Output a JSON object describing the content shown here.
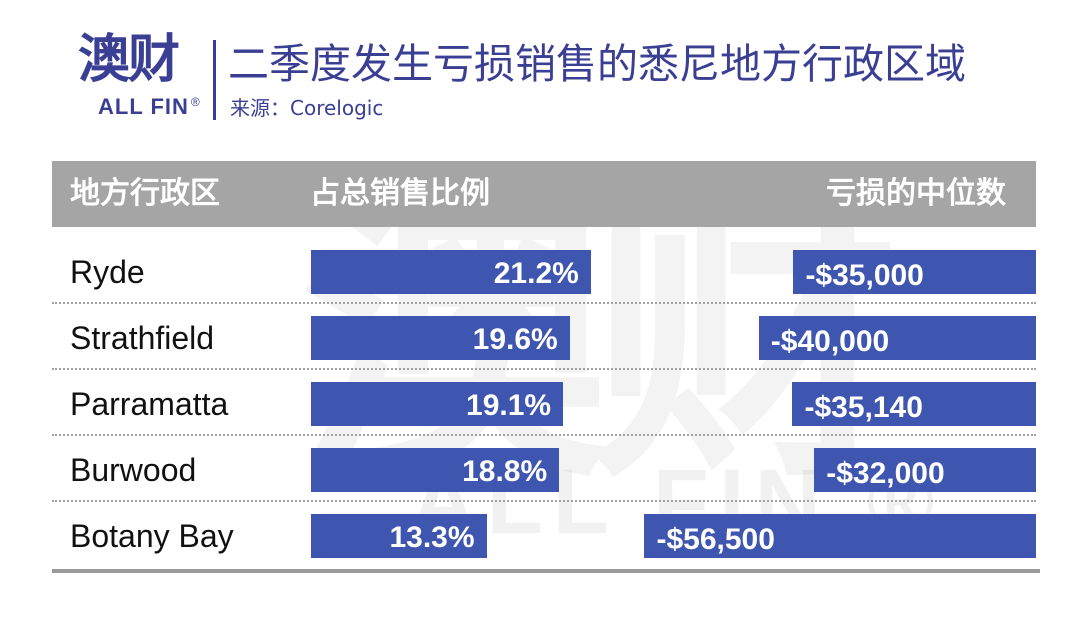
{
  "header": {
    "logo_cn": "澳财",
    "logo_en": "ALL FIN",
    "logo_reg": "®",
    "title": "二季度发生亏损销售的悉尼地方行政区域",
    "source": "来源：Corelogic"
  },
  "watermark": {
    "cn": "澳财",
    "en": "ALL FIN ®"
  },
  "table": {
    "col_region": "地方行政区",
    "col_share": "占总销售比例",
    "col_loss": "亏损的中位数"
  },
  "colors": {
    "bar": "#3f56b0",
    "header_bg": "#a5a5a5",
    "brand": "#3a3f93"
  },
  "chart_data": {
    "type": "bar",
    "categories": [
      "Ryde",
      "Strathfield",
      "Parramatta",
      "Burwood",
      "Botany Bay"
    ],
    "series": [
      {
        "name": "占总销售比例",
        "values": [
          21.2,
          19.6,
          19.1,
          18.8,
          13.3
        ],
        "labels": [
          "21.2%",
          "19.6%",
          "19.1%",
          "18.8%",
          "13.3%"
        ]
      },
      {
        "name": "亏损的中位数",
        "values": [
          -35000,
          -40000,
          -35140,
          -32000,
          -56500
        ],
        "labels": [
          "-$35,000",
          "-$40,000",
          "-$35,140",
          "-$32,000",
          "-$56,500"
        ]
      }
    ],
    "title": "二季度发生亏损销售的悉尼地方行政区域"
  }
}
